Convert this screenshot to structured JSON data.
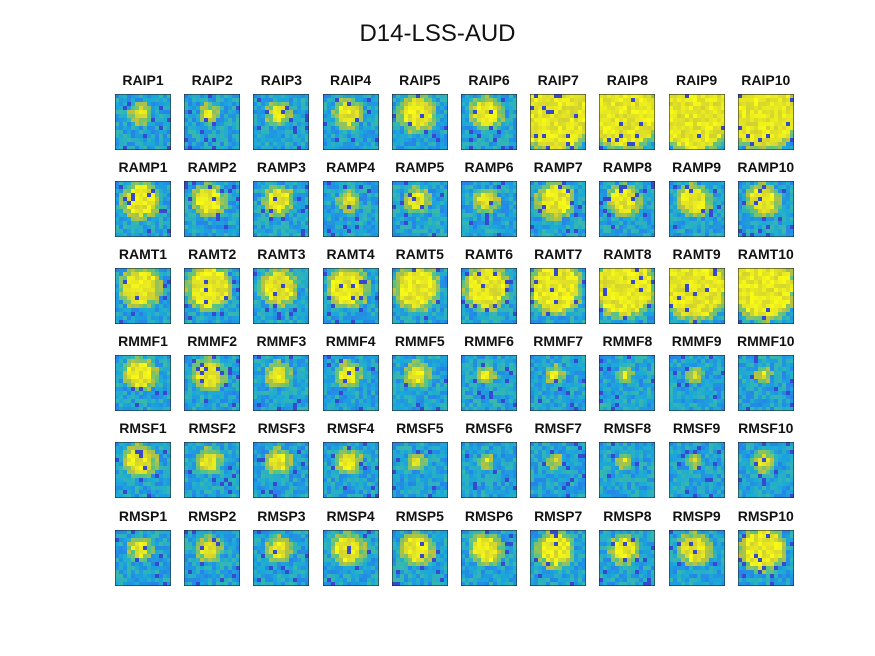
{
  "title": "D14-LSS-AUD",
  "chart_data": {
    "type": "heatmap",
    "title": "D14-LSS-AUD",
    "colormap": [
      "#3e26a8",
      "#2f6bf2",
      "#1aa9d9",
      "#4cc28e",
      "#c2c23a",
      "#f9fb15"
    ],
    "rows": [
      {
        "panels": [
          {
            "label": "RAIP1",
            "fill": 0.15
          },
          {
            "label": "RAIP2",
            "fill": 0.12
          },
          {
            "label": "RAIP3",
            "fill": 0.18
          },
          {
            "label": "RAIP4",
            "fill": 0.25
          },
          {
            "label": "RAIP5",
            "fill": 0.35
          },
          {
            "label": "RAIP6",
            "fill": 0.3
          },
          {
            "label": "RAIP7",
            "fill": 0.85
          },
          {
            "label": "RAIP8",
            "fill": 0.8
          },
          {
            "label": "RAIP9",
            "fill": 0.85
          },
          {
            "label": "RAIP10",
            "fill": 0.8
          }
        ]
      },
      {
        "panels": [
          {
            "label": "RAMP1",
            "fill": 0.35
          },
          {
            "label": "RAMP2",
            "fill": 0.3
          },
          {
            "label": "RAMP3",
            "fill": 0.25
          },
          {
            "label": "RAMP4",
            "fill": 0.15
          },
          {
            "label": "RAMP5",
            "fill": 0.2
          },
          {
            "label": "RAMP6",
            "fill": 0.18
          },
          {
            "label": "RAMP7",
            "fill": 0.35
          },
          {
            "label": "RAMP8",
            "fill": 0.3
          },
          {
            "label": "RAMP9",
            "fill": 0.3
          },
          {
            "label": "RAMP10",
            "fill": 0.3
          }
        ]
      },
      {
        "panels": [
          {
            "label": "RAMT1",
            "fill": 0.4
          },
          {
            "label": "RAMT2",
            "fill": 0.45
          },
          {
            "label": "RAMT3",
            "fill": 0.35
          },
          {
            "label": "RAMT4",
            "fill": 0.4
          },
          {
            "label": "RAMT5",
            "fill": 0.45
          },
          {
            "label": "RAMT6",
            "fill": 0.45
          },
          {
            "label": "RAMT7",
            "fill": 0.55
          },
          {
            "label": "RAMT8",
            "fill": 0.65
          },
          {
            "label": "RAMT9",
            "fill": 0.7
          },
          {
            "label": "RAMT10",
            "fill": 0.7
          }
        ]
      },
      {
        "panels": [
          {
            "label": "RMMF1",
            "fill": 0.3
          },
          {
            "label": "RMMF2",
            "fill": 0.3
          },
          {
            "label": "RMMF3",
            "fill": 0.2
          },
          {
            "label": "RMMF4",
            "fill": 0.2
          },
          {
            "label": "RMMF5",
            "fill": 0.2
          },
          {
            "label": "RMMF6",
            "fill": 0.1
          },
          {
            "label": "RMMF7",
            "fill": 0.1
          },
          {
            "label": "RMMF8",
            "fill": 0.08
          },
          {
            "label": "RMMF9",
            "fill": 0.08
          },
          {
            "label": "RMMF10",
            "fill": 0.08
          }
        ]
      },
      {
        "panels": [
          {
            "label": "RMSF1",
            "fill": 0.3
          },
          {
            "label": "RMSF2",
            "fill": 0.2
          },
          {
            "label": "RMSF3",
            "fill": 0.2
          },
          {
            "label": "RMSF4",
            "fill": 0.2
          },
          {
            "label": "RMSF5",
            "fill": 0.1
          },
          {
            "label": "RMSF6",
            "fill": 0.06
          },
          {
            "label": "RMSF7",
            "fill": 0.05
          },
          {
            "label": "RMSF8",
            "fill": 0.06
          },
          {
            "label": "RMSF9",
            "fill": 0.06
          },
          {
            "label": "RMSF10",
            "fill": 0.15
          }
        ]
      },
      {
        "panels": [
          {
            "label": "RMSP1",
            "fill": 0.18
          },
          {
            "label": "RMSP2",
            "fill": 0.2
          },
          {
            "label": "RMSP3",
            "fill": 0.2
          },
          {
            "label": "RMSP4",
            "fill": 0.3
          },
          {
            "label": "RMSP5",
            "fill": 0.3
          },
          {
            "label": "RMSP6",
            "fill": 0.3
          },
          {
            "label": "RMSP7",
            "fill": 0.35
          },
          {
            "label": "RMSP8",
            "fill": 0.25
          },
          {
            "label": "RMSP9",
            "fill": 0.3
          },
          {
            "label": "RMSP10",
            "fill": 0.45
          }
        ]
      }
    ]
  }
}
